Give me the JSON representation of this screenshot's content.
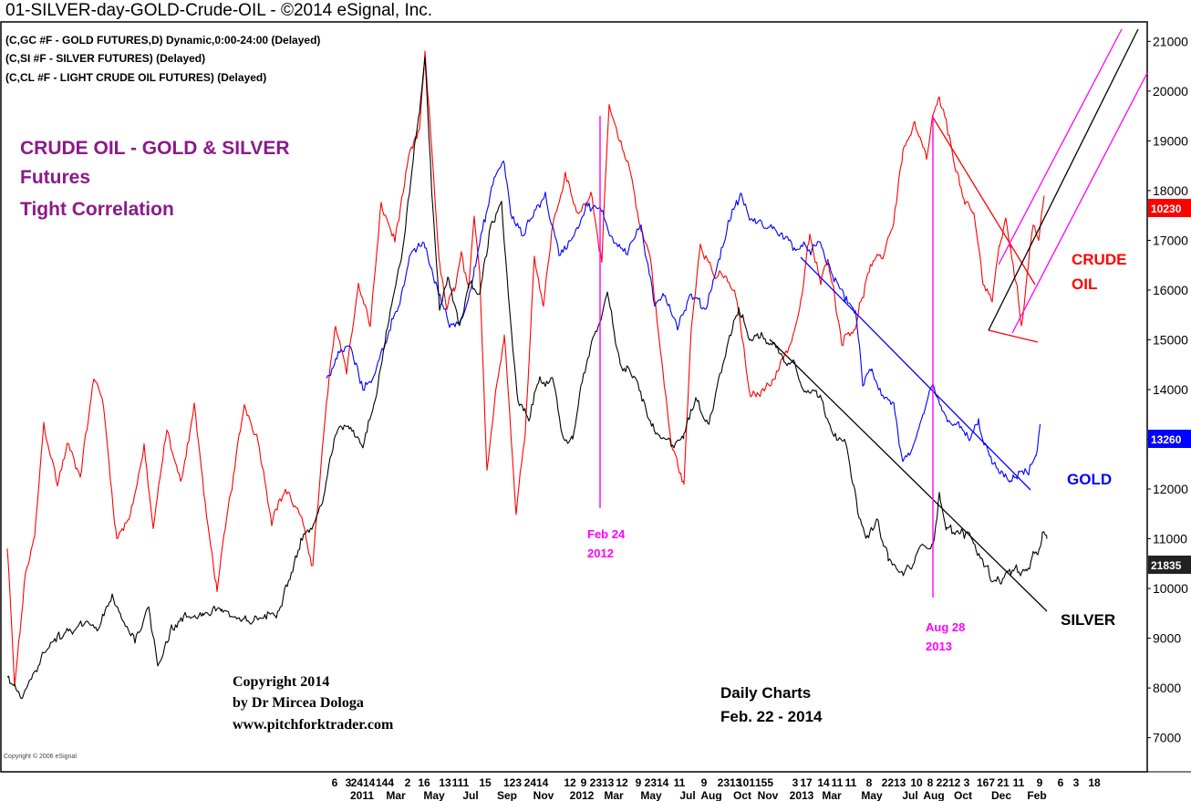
{
  "header": {
    "title": "01-SILVER-day-GOLD-Crude-OIL - ©2014 eSignal, Inc.",
    "symbols": [
      "(C,GC #F - GOLD FUTURES,D) Dynamic,0:00-24:00 (Delayed)",
      "(C,SI #F - SILVER FUTURES)  (Delayed)",
      "(C,CL #F - LIGHT CRUDE OIL FUTURES)  (Delayed)"
    ]
  },
  "annotations": {
    "headline": [
      "CRUDE OIL - GOLD & SILVER",
      "Futures",
      "Tight Correlation"
    ],
    "copyright": [
      "Copyright 2014",
      "by Dr Mircea Dologa",
      "www.pitchforktrader.com"
    ],
    "daily": [
      "Daily Charts",
      "Feb. 22 - 2014"
    ],
    "event1": [
      "Feb 24",
      "2012"
    ],
    "event2": [
      "Aug 28",
      "2013"
    ],
    "crude_label": [
      "CRUDE",
      "OIL"
    ],
    "gold_label": "GOLD",
    "silver_label": "SILVER",
    "watermark": "Copyright © 2006 eSignal"
  },
  "colors": {
    "crude": "#ff0000",
    "gold": "#0000ff",
    "silver": "#000000",
    "headline": "#8b1a8b",
    "event": "#ff00ff",
    "pitchfork": "#ff00ff"
  },
  "chart_data": {
    "type": "line",
    "x_tick_labels_top": [
      "6",
      "3",
      "2414",
      "144",
      "2",
      "16",
      "13",
      "111",
      "15",
      "123",
      "2414",
      "12",
      "9",
      "2313",
      "12",
      "9",
      "2314",
      "11",
      "9",
      "2313",
      "101",
      "155",
      "3",
      "17",
      "14",
      "11",
      "11",
      "8",
      "2213",
      "10",
      "8",
      "2212",
      "3",
      "167",
      "21",
      "11",
      "9",
      "6",
      "3",
      "18"
    ],
    "x_tick_labels_bottom": [
      "2011",
      "Mar",
      "May",
      "Jul",
      "Sep",
      "Nov",
      "2012",
      "Mar",
      "May",
      "Jul",
      "Aug",
      "Oct",
      "Nov",
      "2013",
      "Mar",
      "May",
      "Jul",
      "Aug",
      "Oct",
      "Dec",
      "Feb"
    ],
    "y_ticks": [
      "21000",
      "20000",
      "19000",
      "18000",
      "17000",
      "16000",
      "15000",
      "14000",
      "13000",
      "12000",
      "11000",
      "10000",
      "9000",
      "8000",
      "7000"
    ],
    "ylim": [
      6700,
      21300
    ],
    "last_values": {
      "crude": "10230",
      "gold": "13260",
      "silver": "21835"
    },
    "series": [
      {
        "name": "CRUDE OIL",
        "keypoints": [
          [
            0,
            10800
          ],
          [
            4,
            9500
          ],
          [
            8,
            8000
          ],
          [
            20,
            10300
          ],
          [
            30,
            11000
          ],
          [
            40,
            13300
          ],
          [
            55,
            12100
          ],
          [
            66,
            12900
          ],
          [
            80,
            12300
          ],
          [
            95,
            14200
          ],
          [
            104,
            13900
          ],
          [
            120,
            11000
          ],
          [
            135,
            11500
          ],
          [
            150,
            12800
          ],
          [
            160,
            11200
          ],
          [
            175,
            13200
          ],
          [
            190,
            12100
          ],
          [
            205,
            13700
          ],
          [
            220,
            11200
          ],
          [
            230,
            10000
          ],
          [
            245,
            11900
          ],
          [
            260,
            13700
          ],
          [
            275,
            13000
          ],
          [
            290,
            11400
          ],
          [
            305,
            12000
          ],
          [
            320,
            11500
          ],
          [
            335,
            10500
          ],
          [
            350,
            13700
          ],
          [
            360,
            15300
          ],
          [
            372,
            14400
          ],
          [
            385,
            16100
          ],
          [
            398,
            15300
          ],
          [
            410,
            17700
          ],
          [
            425,
            17000
          ],
          [
            440,
            18600
          ],
          [
            452,
            19200
          ],
          [
            458,
            20700
          ],
          [
            466,
            18700
          ],
          [
            474,
            16500
          ],
          [
            482,
            15600
          ],
          [
            490,
            16000
          ],
          [
            498,
            16700
          ],
          [
            506,
            15900
          ],
          [
            512,
            17500
          ],
          [
            518,
            16400
          ],
          [
            526,
            12400
          ],
          [
            534,
            13700
          ],
          [
            545,
            15200
          ],
          [
            558,
            11500
          ],
          [
            568,
            13200
          ],
          [
            578,
            16700
          ],
          [
            588,
            15700
          ],
          [
            598,
            17300
          ],
          [
            612,
            18300
          ],
          [
            625,
            17500
          ],
          [
            640,
            18000
          ],
          [
            652,
            16600
          ],
          [
            660,
            19700
          ],
          [
            670,
            19000
          ],
          [
            682,
            18500
          ],
          [
            695,
            17200
          ],
          [
            705,
            16700
          ],
          [
            716,
            14800
          ],
          [
            728,
            12900
          ],
          [
            742,
            12100
          ],
          [
            750,
            15200
          ],
          [
            760,
            17000
          ],
          [
            775,
            16300
          ],
          [
            790,
            16200
          ],
          [
            800,
            15800
          ],
          [
            815,
            13800
          ],
          [
            830,
            14000
          ],
          [
            845,
            14400
          ],
          [
            860,
            15000
          ],
          [
            870,
            15700
          ],
          [
            880,
            17100
          ],
          [
            892,
            16100
          ],
          [
            900,
            16700
          ],
          [
            915,
            15000
          ],
          [
            930,
            15300
          ],
          [
            945,
            16400
          ],
          [
            960,
            16700
          ],
          [
            972,
            17400
          ],
          [
            982,
            18800
          ],
          [
            995,
            19300
          ],
          [
            1008,
            18600
          ],
          [
            1015,
            19500
          ],
          [
            1022,
            19800
          ],
          [
            1030,
            19300
          ],
          [
            1040,
            18500
          ],
          [
            1050,
            17700
          ],
          [
            1060,
            17500
          ],
          [
            1070,
            16200
          ],
          [
            1080,
            15800
          ],
          [
            1088,
            16900
          ],
          [
            1095,
            17400
          ],
          [
            1100,
            16900
          ],
          [
            1108,
            15900
          ],
          [
            1112,
            15300
          ],
          [
            1118,
            16300
          ],
          [
            1125,
            17400
          ],
          [
            1131,
            17000
          ],
          [
            1137,
            17900
          ]
        ]
      },
      {
        "name": "GOLD",
        "keypoints": [
          [
            350,
            14200
          ],
          [
            360,
            14600
          ],
          [
            375,
            14900
          ],
          [
            390,
            14000
          ],
          [
            405,
            14400
          ],
          [
            420,
            15300
          ],
          [
            432,
            15900
          ],
          [
            445,
            16800
          ],
          [
            458,
            16900
          ],
          [
            470,
            16100
          ],
          [
            485,
            15300
          ],
          [
            498,
            15400
          ],
          [
            512,
            16400
          ],
          [
            525,
            17500
          ],
          [
            535,
            18300
          ],
          [
            545,
            18600
          ],
          [
            552,
            17500
          ],
          [
            565,
            17100
          ],
          [
            578,
            17600
          ],
          [
            590,
            17900
          ],
          [
            605,
            16700
          ],
          [
            620,
            17100
          ],
          [
            635,
            17700
          ],
          [
            650,
            17600
          ],
          [
            665,
            17000
          ],
          [
            680,
            16800
          ],
          [
            695,
            17300
          ],
          [
            710,
            15600
          ],
          [
            720,
            16000
          ],
          [
            735,
            15300
          ],
          [
            750,
            15900
          ],
          [
            765,
            15600
          ],
          [
            780,
            16600
          ],
          [
            795,
            17600
          ],
          [
            805,
            17900
          ],
          [
            815,
            17400
          ],
          [
            830,
            17300
          ],
          [
            845,
            17200
          ],
          [
            860,
            16900
          ],
          [
            875,
            16800
          ],
          [
            890,
            16900
          ],
          [
            905,
            16300
          ],
          [
            920,
            15800
          ],
          [
            930,
            15600
          ],
          [
            938,
            14100
          ],
          [
            948,
            14400
          ],
          [
            960,
            13900
          ],
          [
            972,
            13700
          ],
          [
            982,
            12500
          ],
          [
            995,
            12800
          ],
          [
            1005,
            13500
          ],
          [
            1015,
            14100
          ],
          [
            1025,
            13500
          ],
          [
            1040,
            13300
          ],
          [
            1055,
            13000
          ],
          [
            1065,
            13300
          ],
          [
            1080,
            12500
          ],
          [
            1090,
            12300
          ],
          [
            1100,
            12100
          ],
          [
            1110,
            12400
          ],
          [
            1120,
            12300
          ],
          [
            1128,
            12700
          ],
          [
            1133,
            13300
          ]
        ]
      },
      {
        "name": "SILVER",
        "keypoints": [
          [
            0,
            8200
          ],
          [
            8,
            8000
          ],
          [
            15,
            7700
          ],
          [
            25,
            8200
          ],
          [
            40,
            8700
          ],
          [
            55,
            9000
          ],
          [
            70,
            9100
          ],
          [
            85,
            9300
          ],
          [
            100,
            9200
          ],
          [
            115,
            9800
          ],
          [
            125,
            9400
          ],
          [
            140,
            9000
          ],
          [
            155,
            9600
          ],
          [
            165,
            8500
          ],
          [
            180,
            9200
          ],
          [
            195,
            9400
          ],
          [
            215,
            9500
          ],
          [
            235,
            9600
          ],
          [
            255,
            9300
          ],
          [
            275,
            9400
          ],
          [
            295,
            9500
          ],
          [
            310,
            10300
          ],
          [
            325,
            11100
          ],
          [
            338,
            11300
          ],
          [
            348,
            12000
          ],
          [
            362,
            13200
          ],
          [
            375,
            13300
          ],
          [
            390,
            12900
          ],
          [
            405,
            14000
          ],
          [
            420,
            15600
          ],
          [
            432,
            16600
          ],
          [
            445,
            18600
          ],
          [
            452,
            19600
          ],
          [
            458,
            20700
          ],
          [
            466,
            17800
          ],
          [
            474,
            15700
          ],
          [
            484,
            16200
          ],
          [
            496,
            15300
          ],
          [
            506,
            16100
          ],
          [
            518,
            15900
          ],
          [
            530,
            17300
          ],
          [
            542,
            17800
          ],
          [
            550,
            15700
          ],
          [
            560,
            13700
          ],
          [
            572,
            13400
          ],
          [
            584,
            14300
          ],
          [
            598,
            14100
          ],
          [
            610,
            13000
          ],
          [
            620,
            13000
          ],
          [
            632,
            14400
          ],
          [
            645,
            15100
          ],
          [
            658,
            15900
          ],
          [
            672,
            14500
          ],
          [
            690,
            14200
          ],
          [
            705,
            13300
          ],
          [
            715,
            13000
          ],
          [
            728,
            12900
          ],
          [
            742,
            13100
          ],
          [
            755,
            13800
          ],
          [
            768,
            13300
          ],
          [
            780,
            14200
          ],
          [
            792,
            15100
          ],
          [
            802,
            15600
          ],
          [
            815,
            15000
          ],
          [
            828,
            15100
          ],
          [
            840,
            14900
          ],
          [
            852,
            14600
          ],
          [
            862,
            14600
          ],
          [
            875,
            14000
          ],
          [
            890,
            13900
          ],
          [
            905,
            13200
          ],
          [
            918,
            13000
          ],
          [
            928,
            12000
          ],
          [
            940,
            11000
          ],
          [
            955,
            11300
          ],
          [
            966,
            10600
          ],
          [
            978,
            10300
          ],
          [
            990,
            10400
          ],
          [
            1005,
            10900
          ],
          [
            1015,
            10900
          ],
          [
            1022,
            11900
          ],
          [
            1030,
            11200
          ],
          [
            1042,
            11100
          ],
          [
            1055,
            11100
          ],
          [
            1068,
            10600
          ],
          [
            1080,
            10200
          ],
          [
            1090,
            10200
          ],
          [
            1105,
            10400
          ],
          [
            1118,
            10300
          ],
          [
            1125,
            10600
          ],
          [
            1130,
            10700
          ],
          [
            1135,
            11100
          ],
          [
            1140,
            11000
          ]
        ]
      }
    ]
  }
}
